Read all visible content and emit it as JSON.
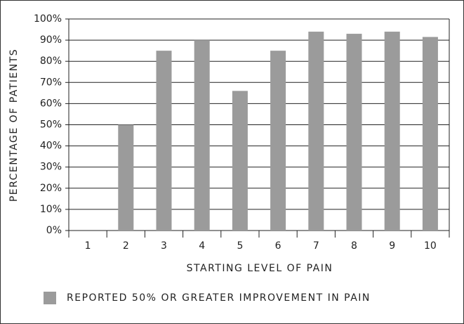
{
  "chart_data": {
    "type": "bar",
    "categories": [
      "1",
      "2",
      "3",
      "4",
      "5",
      "6",
      "7",
      "8",
      "9",
      "10"
    ],
    "values": [
      0,
      50,
      85,
      90,
      66,
      85,
      94,
      93,
      94,
      91.5
    ],
    "color": "#9b9b9b",
    "xlabel": "STARTING LEVEL OF PAIN",
    "ylabel": "PERCENTAGE OF PATIENTS",
    "legend": "REPORTED 50% OR GREATER IMPROVEMENT IN PAIN",
    "ylim": [
      0,
      100
    ],
    "yticks": [
      {
        "value": 0,
        "label": "0%"
      },
      {
        "value": 10,
        "label": "10%"
      },
      {
        "value": 20,
        "label": "20%"
      },
      {
        "value": 30,
        "label": "30%"
      },
      {
        "value": 40,
        "label": "40%"
      },
      {
        "value": 50,
        "label": "50%"
      },
      {
        "value": 60,
        "label": "60%"
      },
      {
        "value": 70,
        "label": "70%"
      },
      {
        "value": 80,
        "label": "80%"
      },
      {
        "value": 90,
        "label": "90%"
      },
      {
        "value": 100,
        "label": "100%"
      }
    ],
    "grid": true
  }
}
